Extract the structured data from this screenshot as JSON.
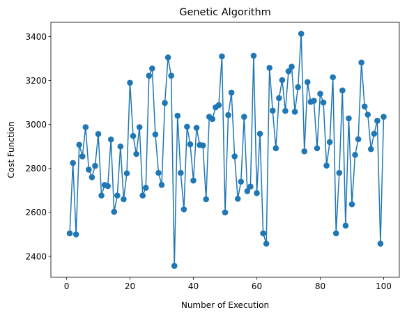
{
  "chart_data": {
    "type": "line",
    "title": "Genetic Algorithm",
    "xlabel": "Number of Execution",
    "ylabel": "Cost Function",
    "xlim": [
      -4.95,
      104.95
    ],
    "ylim": [
      2305,
      3465
    ],
    "xticks": [
      0,
      20,
      40,
      60,
      80,
      100
    ],
    "yticks": [
      2400,
      2600,
      2800,
      3000,
      3200,
      3400
    ],
    "grid": false,
    "markers": true,
    "color": "#1f77b4",
    "series": [
      {
        "x": [
          1,
          2,
          3,
          4,
          5,
          6,
          7,
          8,
          9,
          10,
          11,
          12,
          13,
          14,
          15,
          16,
          17,
          18,
          19,
          20,
          21,
          22,
          23,
          24,
          25,
          26,
          27,
          28,
          29,
          30,
          31,
          32,
          33,
          34,
          35,
          36,
          37,
          38,
          39,
          40,
          41,
          42,
          43,
          44,
          45,
          46,
          47,
          48,
          49,
          50,
          51,
          52,
          53,
          54,
          55,
          56,
          57,
          58,
          59,
          60,
          61,
          62,
          63,
          64,
          65,
          66,
          67,
          68,
          69,
          70,
          71,
          72,
          73,
          74,
          75,
          76,
          77,
          78,
          79,
          80,
          81,
          82,
          83,
          84,
          85,
          86,
          87,
          88,
          89,
          90,
          91,
          92,
          93,
          94,
          95,
          96,
          97,
          98,
          99,
          100
        ],
        "values": [
          2505,
          2825,
          2500,
          2908,
          2855,
          2988,
          2795,
          2760,
          2812,
          2957,
          2677,
          2725,
          2720,
          2932,
          2603,
          2677,
          2900,
          2660,
          2778,
          3190,
          2948,
          2866,
          2988,
          2677,
          2712,
          3222,
          3255,
          2955,
          2780,
          2725,
          3098,
          3305,
          3222,
          2357,
          3040,
          2780,
          2614,
          2990,
          2910,
          2745,
          2985,
          2907,
          2905,
          2660,
          3035,
          3025,
          3078,
          3088,
          3310,
          2600,
          3043,
          3145,
          2855,
          2662,
          2740,
          3035,
          2697,
          2718,
          3313,
          2688,
          2958,
          2505,
          2458,
          3258,
          3063,
          2892,
          3120,
          3202,
          3062,
          3242,
          3263,
          3058,
          3170,
          3413,
          2878,
          3193,
          3103,
          3108,
          2892,
          3140,
          3100,
          2813,
          2920,
          3215,
          2505,
          2780,
          3155,
          2540,
          3028,
          2637,
          2862,
          2933,
          3282,
          3082,
          3045,
          2888,
          2958,
          3017,
          2458,
          3035
        ]
      }
    ]
  }
}
